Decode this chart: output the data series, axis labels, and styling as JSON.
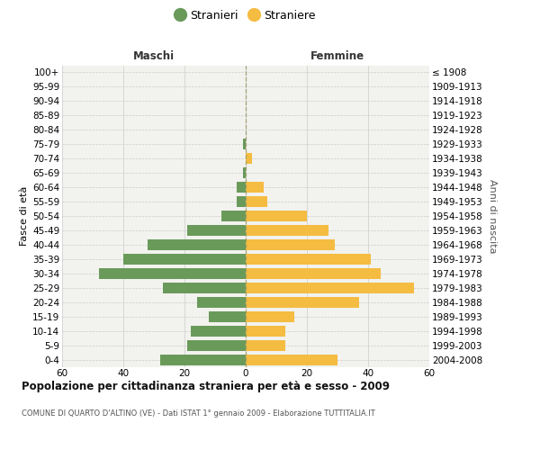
{
  "age_groups": [
    "0-4",
    "5-9",
    "10-14",
    "15-19",
    "20-24",
    "25-29",
    "30-34",
    "35-39",
    "40-44",
    "45-49",
    "50-54",
    "55-59",
    "60-64",
    "65-69",
    "70-74",
    "75-79",
    "80-84",
    "85-89",
    "90-94",
    "95-99",
    "100+"
  ],
  "birth_years": [
    "2004-2008",
    "1999-2003",
    "1994-1998",
    "1989-1993",
    "1984-1988",
    "1979-1983",
    "1974-1978",
    "1969-1973",
    "1964-1968",
    "1959-1963",
    "1954-1958",
    "1949-1953",
    "1944-1948",
    "1939-1943",
    "1934-1938",
    "1929-1933",
    "1924-1928",
    "1919-1923",
    "1914-1918",
    "1909-1913",
    "≤ 1908"
  ],
  "maschi": [
    28,
    19,
    18,
    12,
    16,
    27,
    48,
    40,
    32,
    19,
    8,
    3,
    3,
    1,
    0,
    1,
    0,
    0,
    0,
    0,
    0
  ],
  "femmine": [
    30,
    13,
    13,
    16,
    37,
    55,
    44,
    41,
    29,
    27,
    20,
    7,
    6,
    0,
    2,
    0,
    0,
    0,
    0,
    0,
    0
  ],
  "male_color": "#6a9a5a",
  "female_color": "#f5bc42",
  "dashed_color": "#999966",
  "grid_color": "#cccccc",
  "bg_color": "#f2f2ee",
  "title": "Popolazione per cittadinanza straniera per età e sesso - 2009",
  "subtitle": "COMUNE DI QUARTO D'ALTINO (VE) - Dati ISTAT 1° gennaio 2009 - Elaborazione TUTTITALIA.IT",
  "legend_male": "Stranieri",
  "legend_female": "Straniere",
  "label_maschi": "Maschi",
  "label_femmine": "Femmine",
  "ylabel_left": "Fasce di età",
  "ylabel_right": "Anni di nascita",
  "xlim": 60
}
